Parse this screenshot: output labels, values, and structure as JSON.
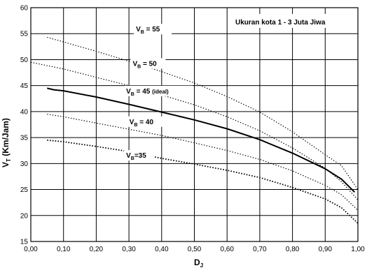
{
  "chart_data": {
    "type": "line",
    "title_box": "Ukuran kota 1 - 3 Juta Jiwa",
    "xlabel_main": "D",
    "xlabel_sub": "J",
    "ylabel_main": "V",
    "ylabel_sub": "T",
    "ylabel_rest": " (Km/Jam)",
    "xlim": [
      0,
      1
    ],
    "ylim": [
      15,
      60
    ],
    "x_ticks": [
      "0,00",
      "0,10",
      "0,20",
      "0,30",
      "0,40",
      "0,50",
      "0,60",
      "0,70",
      "0,80",
      "0,90",
      "1,00"
    ],
    "y_ticks": [
      "15",
      "20",
      "25",
      "30",
      "35",
      "40",
      "45",
      "50",
      "55",
      "60"
    ],
    "grid": true,
    "series": [
      {
        "name_main": "V",
        "name_sub": "B",
        "name_rest": " = 55",
        "name_extra": "",
        "style": "dotted",
        "points": [
          [
            0.05,
            54.3
          ],
          [
            0.1,
            53.4
          ],
          [
            0.2,
            51.6
          ],
          [
            0.3,
            49.7
          ],
          [
            0.4,
            47.7
          ],
          [
            0.5,
            45.5
          ],
          [
            0.6,
            42.9
          ],
          [
            0.7,
            39.9
          ],
          [
            0.8,
            36.1
          ],
          [
            0.9,
            31.7
          ],
          [
            0.95,
            29.6
          ],
          [
            1.0,
            25.0
          ]
        ]
      },
      {
        "name_main": "V",
        "name_sub": "B",
        "name_rest": " = 50",
        "name_extra": "",
        "style": "dotted",
        "points": [
          [
            0.0,
            49.5
          ],
          [
            0.1,
            48.2
          ],
          [
            0.2,
            46.6
          ],
          [
            0.3,
            45.0
          ],
          [
            0.4,
            43.2
          ],
          [
            0.5,
            41.3
          ],
          [
            0.6,
            39.0
          ],
          [
            0.7,
            36.3
          ],
          [
            0.8,
            33.0
          ],
          [
            0.9,
            29.1
          ],
          [
            0.95,
            26.5
          ],
          [
            1.0,
            23.0
          ]
        ]
      },
      {
        "name_main": "V",
        "name_sub": "B",
        "name_rest": " = 45 ",
        "name_extra": "(ideal)",
        "style": "solid",
        "points": [
          [
            0.05,
            44.5
          ],
          [
            0.07,
            44.2
          ],
          [
            0.1,
            44.0
          ],
          [
            0.2,
            42.8
          ],
          [
            0.3,
            41.4
          ],
          [
            0.4,
            39.9
          ],
          [
            0.5,
            38.4
          ],
          [
            0.6,
            36.7
          ],
          [
            0.7,
            34.6
          ],
          [
            0.8,
            32.0
          ],
          [
            0.9,
            29.0
          ],
          [
            0.95,
            27.0
          ],
          [
            0.99,
            24.5
          ]
        ]
      },
      {
        "name_main": "V",
        "name_sub": "B",
        "name_rest": " = 40",
        "name_extra": "",
        "style": "dotted",
        "points": [
          [
            0.05,
            39.5
          ],
          [
            0.1,
            39.0
          ],
          [
            0.2,
            37.8
          ],
          [
            0.3,
            36.6
          ],
          [
            0.4,
            35.4
          ],
          [
            0.5,
            34.0
          ],
          [
            0.6,
            32.5
          ],
          [
            0.7,
            30.8
          ],
          [
            0.8,
            28.6
          ],
          [
            0.9,
            25.8
          ],
          [
            0.95,
            24.0
          ],
          [
            1.0,
            21.0
          ]
        ]
      },
      {
        "name_main": "V",
        "name_sub": "B",
        "name_rest": "=35",
        "name_extra": "",
        "style": "dotted-heavy",
        "points": [
          [
            0.05,
            34.5
          ],
          [
            0.1,
            34.2
          ],
          [
            0.2,
            33.3
          ],
          [
            0.3,
            32.3
          ],
          [
            0.4,
            31.0
          ],
          [
            0.5,
            29.9
          ],
          [
            0.6,
            28.7
          ],
          [
            0.7,
            27.3
          ],
          [
            0.8,
            25.4
          ],
          [
            0.9,
            23.2
          ],
          [
            0.95,
            21.5
          ],
          [
            1.0,
            18.5
          ]
        ]
      }
    ]
  }
}
